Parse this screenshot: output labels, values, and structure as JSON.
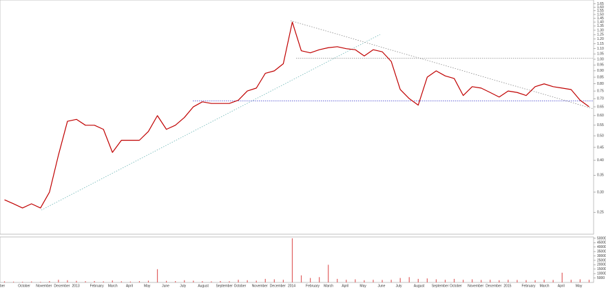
{
  "chart_data": [
    {
      "type": "line",
      "log_scale": true,
      "color": "#c00000",
      "categories": [
        "ber",
        null,
        "October",
        null,
        "November",
        null,
        "December",
        null,
        "2013",
        null,
        "February",
        null,
        "March",
        null,
        "April",
        null,
        "May",
        null,
        "June",
        null,
        "July",
        null,
        "August",
        null,
        "September",
        null,
        "October",
        null,
        "November",
        null,
        "December",
        null,
        "2014",
        null,
        "February",
        null,
        "March",
        null,
        "April",
        null,
        "May",
        null,
        "June",
        null,
        "July",
        null,
        "August",
        null,
        "September",
        null,
        "October",
        null,
        "November",
        null,
        "December",
        null,
        "2015",
        null,
        "February",
        null,
        "March",
        null,
        "April",
        null,
        "May",
        null
      ],
      "values": [
        0.28,
        0.27,
        0.26,
        0.27,
        0.26,
        0.3,
        0.42,
        0.57,
        0.58,
        0.55,
        0.55,
        0.53,
        0.43,
        0.48,
        0.48,
        0.48,
        0.52,
        0.6,
        0.53,
        0.55,
        0.59,
        0.65,
        0.68,
        0.67,
        0.67,
        0.67,
        0.69,
        0.75,
        0.77,
        0.88,
        0.9,
        0.96,
        1.4,
        1.08,
        1.06,
        1.09,
        1.11,
        1.12,
        1.1,
        1.09,
        1.03,
        1.09,
        1.07,
        0.98,
        0.76,
        0.7,
        0.66,
        0.85,
        0.9,
        0.86,
        0.84,
        0.72,
        0.78,
        0.77,
        0.74,
        0.71,
        0.75,
        0.74,
        0.72,
        0.78,
        0.8,
        0.78,
        0.77,
        0.76,
        0.69,
        0.65
      ],
      "ylim": [
        0.205,
        1.71
      ],
      "yticks": [
        {
          "value": 0.25,
          "label": "0.25"
        },
        {
          "value": 0.3,
          "label": "0.30"
        },
        {
          "value": 0.35,
          "label": "0.35"
        },
        {
          "value": 0.4,
          "label": "0.40"
        },
        {
          "value": 0.45,
          "label": "0.45"
        },
        {
          "value": 0.5,
          "label": "0.50"
        },
        {
          "value": 0.55,
          "label": "0.55"
        },
        {
          "value": 0.6,
          "label": "0.60"
        },
        {
          "value": 0.65,
          "label": "0.65"
        },
        {
          "value": 0.7,
          "label": "0.70"
        },
        {
          "value": 0.75,
          "label": "0.75"
        },
        {
          "value": 0.8,
          "label": "0.80"
        },
        {
          "value": 0.85,
          "label": "0.85"
        },
        {
          "value": 0.9,
          "label": "0.90"
        },
        {
          "value": 0.95,
          "label": "0.95"
        },
        {
          "value": 1,
          "label": "1.00"
        },
        {
          "value": 1.05,
          "label": "1.05"
        },
        {
          "value": 1.1,
          "label": "1.10"
        },
        {
          "value": 1.15,
          "label": "1.15"
        },
        {
          "value": 1.2,
          "label": "1.20"
        },
        {
          "value": 1.25,
          "label": "1.25"
        },
        {
          "value": 1.3,
          "label": "1.30"
        },
        {
          "value": 1.35,
          "label": "1.35"
        },
        {
          "value": 1.4,
          "label": "1.40"
        },
        {
          "value": 1.45,
          "label": "1.45"
        },
        {
          "value": 1.5,
          "label": "1.50"
        },
        {
          "value": 1.55,
          "label": "1.55"
        },
        {
          "value": 1.6,
          "label": "1.60"
        },
        {
          "value": 1.65,
          "label": "1.65"
        }
      ],
      "reference_lines": [
        {
          "value": 1.01,
          "color": "#888888"
        },
        {
          "value": 0.685,
          "color": "#3333cc"
        }
      ]
    },
    {
      "type": "bar",
      "color": "#e06060",
      "values": [
        1200,
        900,
        800,
        1100,
        700,
        1500,
        3000,
        2500,
        1800,
        1400,
        1600,
        1200,
        2200,
        1300,
        1000,
        1500,
        2000,
        15000,
        1800,
        1500,
        2500,
        2000,
        1400,
        1200,
        1600,
        1300,
        3000,
        2500,
        2000,
        4000,
        3500,
        3000,
        50000,
        8000,
        5000,
        6000,
        20000,
        4000,
        3000,
        3500,
        2500,
        3000,
        2800,
        3000,
        5000,
        6000,
        4000,
        4500,
        3500,
        3000,
        4000,
        3000,
        3500,
        2800,
        3000,
        2500,
        3000,
        2800,
        2600,
        2500,
        3000,
        2800,
        11000,
        3000,
        3500,
        3000
      ],
      "ylim": [
        0,
        51500
      ],
      "yticks": [
        5000,
        10000,
        15000,
        20000,
        25000,
        30000,
        35000,
        40000,
        45000,
        50000
      ]
    }
  ]
}
